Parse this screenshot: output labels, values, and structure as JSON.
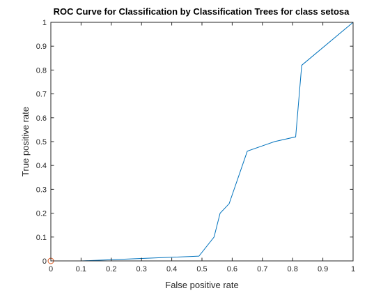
{
  "chart_data": {
    "type": "line",
    "title": "ROC Curve for Classification by Classification Trees for class setosa",
    "xlabel": "False positive rate",
    "ylabel": "True positive rate",
    "xlim": [
      0,
      1
    ],
    "ylim": [
      0,
      1
    ],
    "grid": false,
    "legend": "none",
    "xticks": [
      "0",
      "0.1",
      "0.2",
      "0.3",
      "0.4",
      "0.5",
      "0.6",
      "0.7",
      "0.8",
      "0.9",
      "1"
    ],
    "yticks": [
      "0",
      "0.1",
      "0.2",
      "0.3",
      "0.4",
      "0.5",
      "0.6",
      "0.7",
      "0.8",
      "0.9",
      "1"
    ],
    "series": [
      {
        "color": "#0072bd",
        "x": [
          0,
          0.1,
          0.49,
          0.54,
          0.56,
          0.59,
          0.65,
          0.74,
          0.81,
          0.83,
          1.0
        ],
        "y": [
          0,
          0,
          0.02,
          0.1,
          0.2,
          0.24,
          0.46,
          0.5,
          0.52,
          0.82,
          1.0
        ]
      }
    ],
    "operating_point": {
      "x": 0,
      "y": 0,
      "color": "#d95319",
      "marker": "circle"
    }
  }
}
